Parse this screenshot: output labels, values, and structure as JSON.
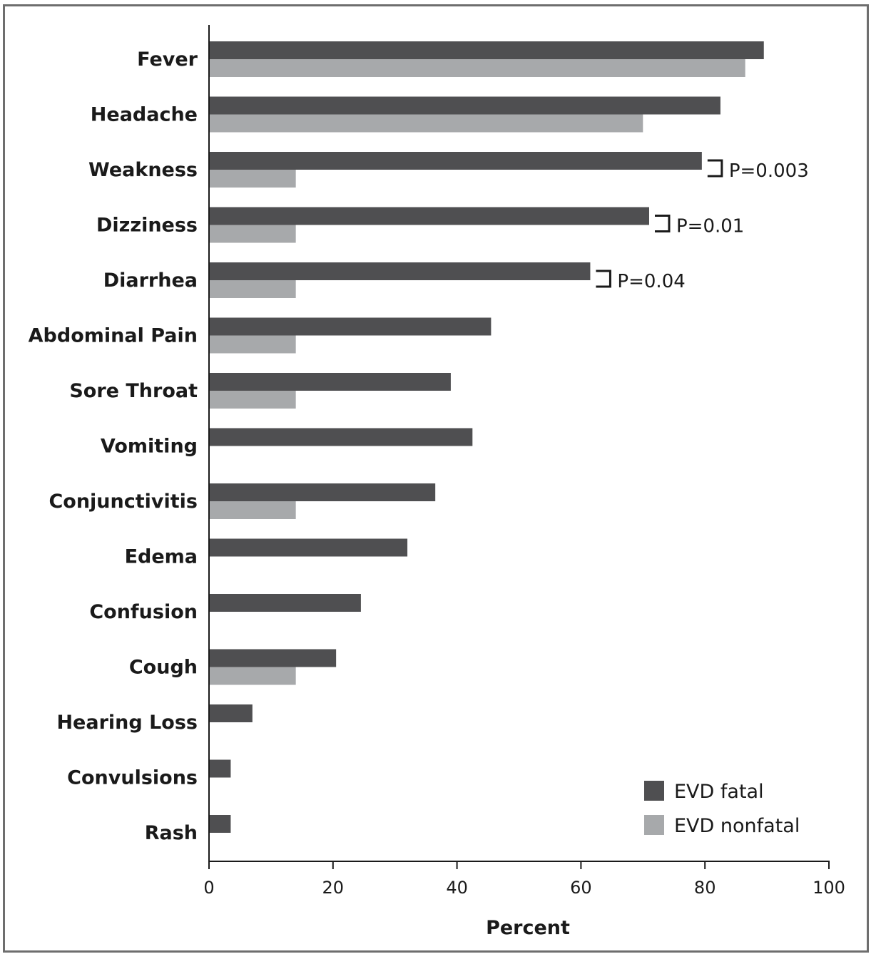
{
  "chart_data": {
    "type": "bar",
    "orientation": "horizontal",
    "categories": [
      "Fever",
      "Headache",
      "Weakness",
      "Dizziness",
      "Diarrhea",
      "Abdominal Pain",
      "Sore Throat",
      "Vomiting",
      "Conjunctivitis",
      "Edema",
      "Confusion",
      "Cough",
      "Hearing Loss",
      "Convulsions",
      "Rash"
    ],
    "series": [
      {
        "name": "EVD fatal",
        "color": "#4f4f51",
        "values": [
          89.5,
          82.5,
          79.5,
          71,
          61.5,
          45.5,
          39,
          42.5,
          36.5,
          32,
          24.5,
          20.5,
          7,
          3.5,
          3.5
        ]
      },
      {
        "name": "EVD nonfatal",
        "color": "#a7a9ab",
        "values": [
          86.5,
          70,
          14,
          14,
          14,
          14,
          14,
          null,
          14,
          null,
          null,
          14,
          null,
          null,
          null
        ]
      }
    ],
    "xlabel": "Percent",
    "xlim": [
      0,
      100
    ],
    "xticks": [
      0,
      20,
      40,
      60,
      80,
      100
    ],
    "legend_position": "bottom-right",
    "annotations": [
      {
        "category": "Weakness",
        "text": "P=0.003"
      },
      {
        "category": "Dizziness",
        "text": "P=0.01"
      },
      {
        "category": "Diarrhea",
        "text": "P=0.04"
      }
    ]
  }
}
